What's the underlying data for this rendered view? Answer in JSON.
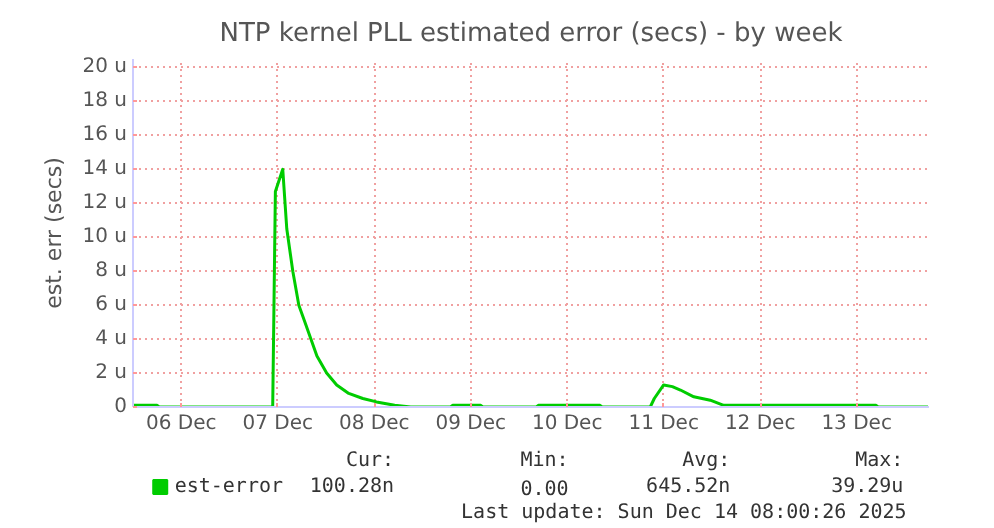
{
  "chart_data": {
    "type": "line",
    "title": "NTP kernel PLL estimated error (secs) - by week",
    "ylabel": "est. err (secs)",
    "x": [
      "2025-12-06T00:00",
      "2025-12-06T06:00",
      "2025-12-06T06:30",
      "2025-12-06T19:00",
      "2025-12-07T10:45",
      "2025-12-07T11:25",
      "2025-12-07T13:15",
      "2025-12-07T14:15",
      "2025-12-07T15:45",
      "2025-12-07T17:15",
      "2025-12-07T18:45",
      "2025-12-07T20:15",
      "2025-12-07T21:45",
      "2025-12-08T00:10",
      "2025-12-08T02:40",
      "2025-12-08T05:40",
      "2025-12-08T09:10",
      "2025-12-08T12:35",
      "2025-12-08T17:05",
      "2025-12-08T21:05",
      "2025-12-09T07:00",
      "2025-12-09T07:30",
      "2025-12-09T14:30",
      "2025-12-09T15:00",
      "2025-12-10T04:20",
      "2025-12-10T04:50",
      "2025-12-10T20:10",
      "2025-12-10T20:40",
      "2025-12-11T08:40",
      "2025-12-11T09:40",
      "2025-12-11T12:00",
      "2025-12-11T14:10",
      "2025-12-11T16:10",
      "2025-12-11T19:30",
      "2025-12-11T23:35",
      "2025-12-12T02:55",
      "2025-12-13T16:50",
      "2025-12-13T17:20",
      "2025-12-14T05:45"
    ],
    "series": [
      {
        "name": "est-error",
        "color": "#00cc00",
        "values": [
          0.1,
          0.1,
          0,
          0,
          0,
          12.7,
          14,
          10.5,
          8,
          6,
          5,
          4,
          3,
          2,
          1.3,
          0.8,
          0.5,
          0.3,
          0.1,
          0,
          0,
          0.1,
          0.1,
          0,
          0,
          0.1,
          0.1,
          0,
          0,
          0.5,
          1.3,
          1.2,
          1,
          0.6,
          0.4,
          0.1,
          0.1,
          0,
          0
        ]
      }
    ],
    "xlim": [
      "2025-12-06T00:00",
      "2025-12-14T06:00"
    ],
    "xticks": [
      {
        "value": "2025-12-06T12:00",
        "label": "06 Dec"
      },
      {
        "value": "2025-12-07T12:00",
        "label": "07 Dec"
      },
      {
        "value": "2025-12-08T12:00",
        "label": "08 Dec"
      },
      {
        "value": "2025-12-09T12:00",
        "label": "09 Dec"
      },
      {
        "value": "2025-12-10T12:00",
        "label": "10 Dec"
      },
      {
        "value": "2025-12-11T12:00",
        "label": "11 Dec"
      },
      {
        "value": "2025-12-12T12:00",
        "label": "12 Dec"
      },
      {
        "value": "2025-12-13T12:00",
        "label": "13 Dec"
      }
    ],
    "ylim": [
      0,
      20.5
    ],
    "yticks": [
      0,
      {
        "value": 2,
        "label": "2 u"
      },
      {
        "value": 4,
        "label": "4 u"
      },
      {
        "value": 6,
        "label": "6 u"
      },
      {
        "value": 8,
        "label": "8 u"
      },
      {
        "value": 10,
        "label": "10 u"
      },
      {
        "value": 12,
        "label": "12 u"
      },
      {
        "value": 14,
        "label": "14 u"
      },
      {
        "value": 16,
        "label": "16 u"
      },
      {
        "value": 18,
        "label": "18 u"
      },
      {
        "value": 20,
        "label": "20 u"
      }
    ],
    "grid": true,
    "legend": "bottom left",
    "marker": "none",
    "line_style": "solid",
    "annotations": [
      "Cur:",
      "Min:",
      "Avg:",
      "Max:",
      "100.28n",
      "0.00",
      "645.52n",
      "39.29u",
      "Last update: Sun Dec 14 08:00:26 2025"
    ]
  }
}
